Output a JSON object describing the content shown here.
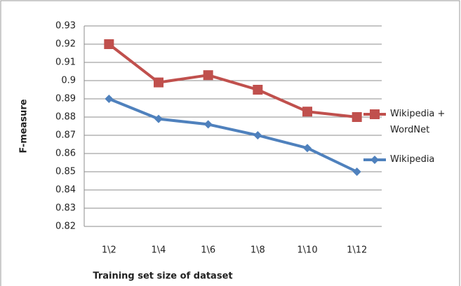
{
  "chart_data": {
    "type": "line",
    "x_label": "Training set size of dataset",
    "y_label": "F-measure",
    "categories": [
      "1\\2",
      "1\\4",
      "1\\6",
      "1\\8",
      "1\\10",
      "1\\12"
    ],
    "series": [
      {
        "name": "Wikipedia + WordNet",
        "color": "#c0504d",
        "marker": "square",
        "values": [
          0.92,
          0.899,
          0.903,
          0.895,
          0.883,
          0.88
        ]
      },
      {
        "name": "Wikipedia",
        "color": "#4f81bd",
        "marker": "diamond",
        "values": [
          0.89,
          0.879,
          0.876,
          0.87,
          0.863,
          0.85
        ]
      }
    ],
    "ylim": [
      0.82,
      0.93
    ],
    "yticks": [
      0.82,
      0.83,
      0.84,
      0.85,
      0.86,
      0.87,
      0.88,
      0.89,
      0.9,
      0.91,
      0.92,
      0.93
    ],
    "grid": true,
    "legend": "right"
  }
}
